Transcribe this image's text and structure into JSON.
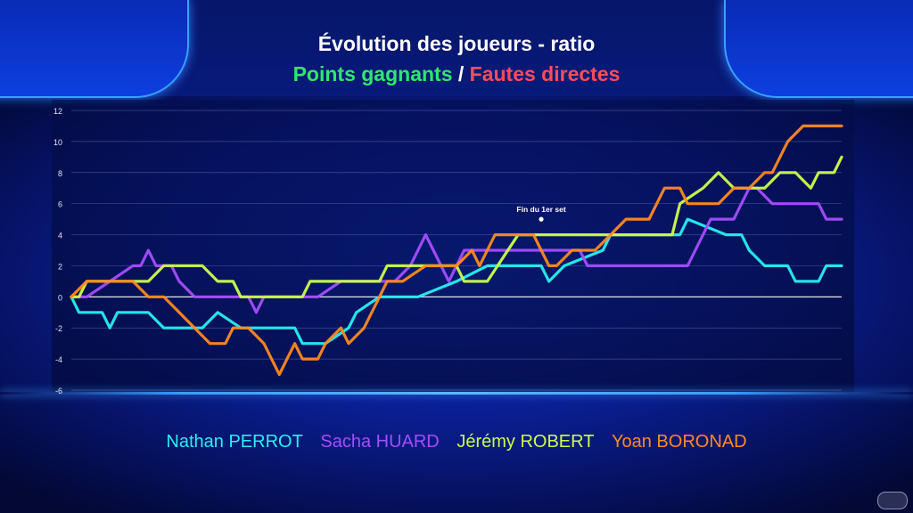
{
  "title": {
    "line1": "Évolution des joueurs - ratio",
    "part_green": "Points gagnants",
    "separator": " / ",
    "part_red": "Fautes directes",
    "colors": {
      "green": "#2ee86a",
      "red": "#ff4d5a"
    }
  },
  "legend": [
    {
      "name": "Nathan PERROT",
      "color": "#26f0f0"
    },
    {
      "name": "Sacha HUARD",
      "color": "#a54dff"
    },
    {
      "name": "Jérémy ROBERT",
      "color": "#ccff4a"
    },
    {
      "name": "Yoan BORONAD",
      "color": "#ff8a1f"
    }
  ],
  "chart_data": {
    "type": "line",
    "ylim": [
      -6,
      12
    ],
    "yticks": [
      "12",
      "10",
      "8",
      "6",
      "4",
      "2",
      "0",
      "-2",
      "-4",
      "-6"
    ],
    "xlim": [
      0,
      100
    ],
    "annotation": {
      "text": "Fin du 1er set",
      "x": 61,
      "y": 5
    },
    "series": [
      {
        "name": "Nathan PERROT",
        "color": "#26f0f0",
        "points": [
          [
            0,
            0
          ],
          [
            1,
            -1
          ],
          [
            3,
            -1
          ],
          [
            4,
            -1
          ],
          [
            5,
            -2
          ],
          [
            6,
            -1
          ],
          [
            10,
            -1
          ],
          [
            12,
            -2
          ],
          [
            17,
            -2
          ],
          [
            19,
            -1
          ],
          [
            22,
            -2
          ],
          [
            29,
            -2
          ],
          [
            30,
            -3
          ],
          [
            33,
            -3
          ],
          [
            36,
            -2
          ],
          [
            37,
            -1
          ],
          [
            40,
            0
          ],
          [
            45,
            0
          ],
          [
            50,
            1
          ],
          [
            54,
            2
          ],
          [
            61,
            2
          ],
          [
            62,
            1
          ],
          [
            64,
            2
          ],
          [
            69,
            3
          ],
          [
            70,
            4
          ],
          [
            79,
            4
          ],
          [
            80,
            5
          ],
          [
            85,
            4
          ],
          [
            87,
            4
          ],
          [
            88,
            3
          ],
          [
            90,
            2
          ],
          [
            93,
            2
          ],
          [
            94,
            1
          ],
          [
            97,
            1
          ],
          [
            98,
            2
          ],
          [
            100,
            2
          ]
        ]
      },
      {
        "name": "Sacha HUARD",
        "color": "#a54dff",
        "points": [
          [
            0,
            0
          ],
          [
            2,
            0
          ],
          [
            5,
            1
          ],
          [
            8,
            2
          ],
          [
            9,
            2
          ],
          [
            10,
            3
          ],
          [
            11,
            2
          ],
          [
            13,
            2
          ],
          [
            14,
            1
          ],
          [
            16,
            0
          ],
          [
            19,
            0
          ],
          [
            21,
            0
          ],
          [
            23,
            0
          ],
          [
            24,
            -1
          ],
          [
            25,
            0
          ],
          [
            29,
            0
          ],
          [
            32,
            0
          ],
          [
            35,
            1
          ],
          [
            37,
            1
          ],
          [
            40,
            1
          ],
          [
            42,
            1
          ],
          [
            44,
            2
          ],
          [
            46,
            4
          ],
          [
            47,
            3
          ],
          [
            48,
            2
          ],
          [
            49,
            1
          ],
          [
            50,
            2
          ],
          [
            51,
            3
          ],
          [
            53,
            3
          ],
          [
            60,
            3
          ],
          [
            63,
            3
          ],
          [
            66,
            3
          ],
          [
            67,
            2
          ],
          [
            70,
            2
          ],
          [
            80,
            2
          ],
          [
            82,
            4
          ],
          [
            83,
            5
          ],
          [
            86,
            5
          ],
          [
            88,
            7
          ],
          [
            89,
            7
          ],
          [
            91,
            6
          ],
          [
            97,
            6
          ],
          [
            98,
            5
          ],
          [
            100,
            5
          ]
        ]
      },
      {
        "name": "Jérémy ROBERT",
        "color": "#ccff4a",
        "points": [
          [
            0,
            0
          ],
          [
            1,
            0
          ],
          [
            2,
            1
          ],
          [
            9,
            1
          ],
          [
            10,
            1
          ],
          [
            12,
            2
          ],
          [
            17,
            2
          ],
          [
            19,
            1
          ],
          [
            21,
            1
          ],
          [
            22,
            0
          ],
          [
            30,
            0
          ],
          [
            31,
            1
          ],
          [
            35,
            1
          ],
          [
            40,
            1
          ],
          [
            41,
            2
          ],
          [
            46,
            2
          ],
          [
            48,
            2
          ],
          [
            50,
            2
          ],
          [
            51,
            1
          ],
          [
            54,
            1
          ],
          [
            58,
            4
          ],
          [
            60,
            4
          ],
          [
            65,
            4
          ],
          [
            70,
            4
          ],
          [
            71,
            4
          ],
          [
            75,
            4
          ],
          [
            78,
            4
          ],
          [
            79,
            6
          ],
          [
            82,
            7
          ],
          [
            84,
            8
          ],
          [
            86,
            7
          ],
          [
            90,
            7
          ],
          [
            92,
            8
          ],
          [
            94,
            8
          ],
          [
            96,
            7
          ],
          [
            97,
            8
          ],
          [
            99,
            8
          ],
          [
            100,
            9
          ]
        ]
      },
      {
        "name": "Yoan BORONAD",
        "color": "#ff8a1f",
        "points": [
          [
            0,
            0
          ],
          [
            2,
            1
          ],
          [
            4,
            1
          ],
          [
            6,
            1
          ],
          [
            8,
            1
          ],
          [
            10,
            0
          ],
          [
            12,
            0
          ],
          [
            14,
            -1
          ],
          [
            16,
            -2
          ],
          [
            18,
            -3
          ],
          [
            20,
            -3
          ],
          [
            21,
            -2
          ],
          [
            23,
            -2
          ],
          [
            25,
            -3
          ],
          [
            26,
            -4
          ],
          [
            27,
            -5
          ],
          [
            28,
            -4
          ],
          [
            29,
            -3
          ],
          [
            30,
            -4
          ],
          [
            32,
            -4
          ],
          [
            33,
            -3
          ],
          [
            35,
            -2
          ],
          [
            36,
            -3
          ],
          [
            38,
            -2
          ],
          [
            40,
            0
          ],
          [
            41,
            1
          ],
          [
            43,
            1
          ],
          [
            46,
            2
          ],
          [
            50,
            2
          ],
          [
            52,
            3
          ],
          [
            53,
            2
          ],
          [
            55,
            4
          ],
          [
            60,
            4
          ],
          [
            61,
            3
          ],
          [
            62,
            2
          ],
          [
            63,
            2
          ],
          [
            65,
            3
          ],
          [
            68,
            3
          ],
          [
            70,
            4
          ],
          [
            72,
            5
          ],
          [
            75,
            5
          ],
          [
            77,
            7
          ],
          [
            79,
            7
          ],
          [
            80,
            6
          ],
          [
            84,
            6
          ],
          [
            86,
            7
          ],
          [
            88,
            7
          ],
          [
            90,
            8
          ],
          [
            91,
            8
          ],
          [
            92,
            9
          ],
          [
            93,
            10
          ],
          [
            95,
            11
          ],
          [
            100,
            11
          ]
        ]
      }
    ]
  }
}
